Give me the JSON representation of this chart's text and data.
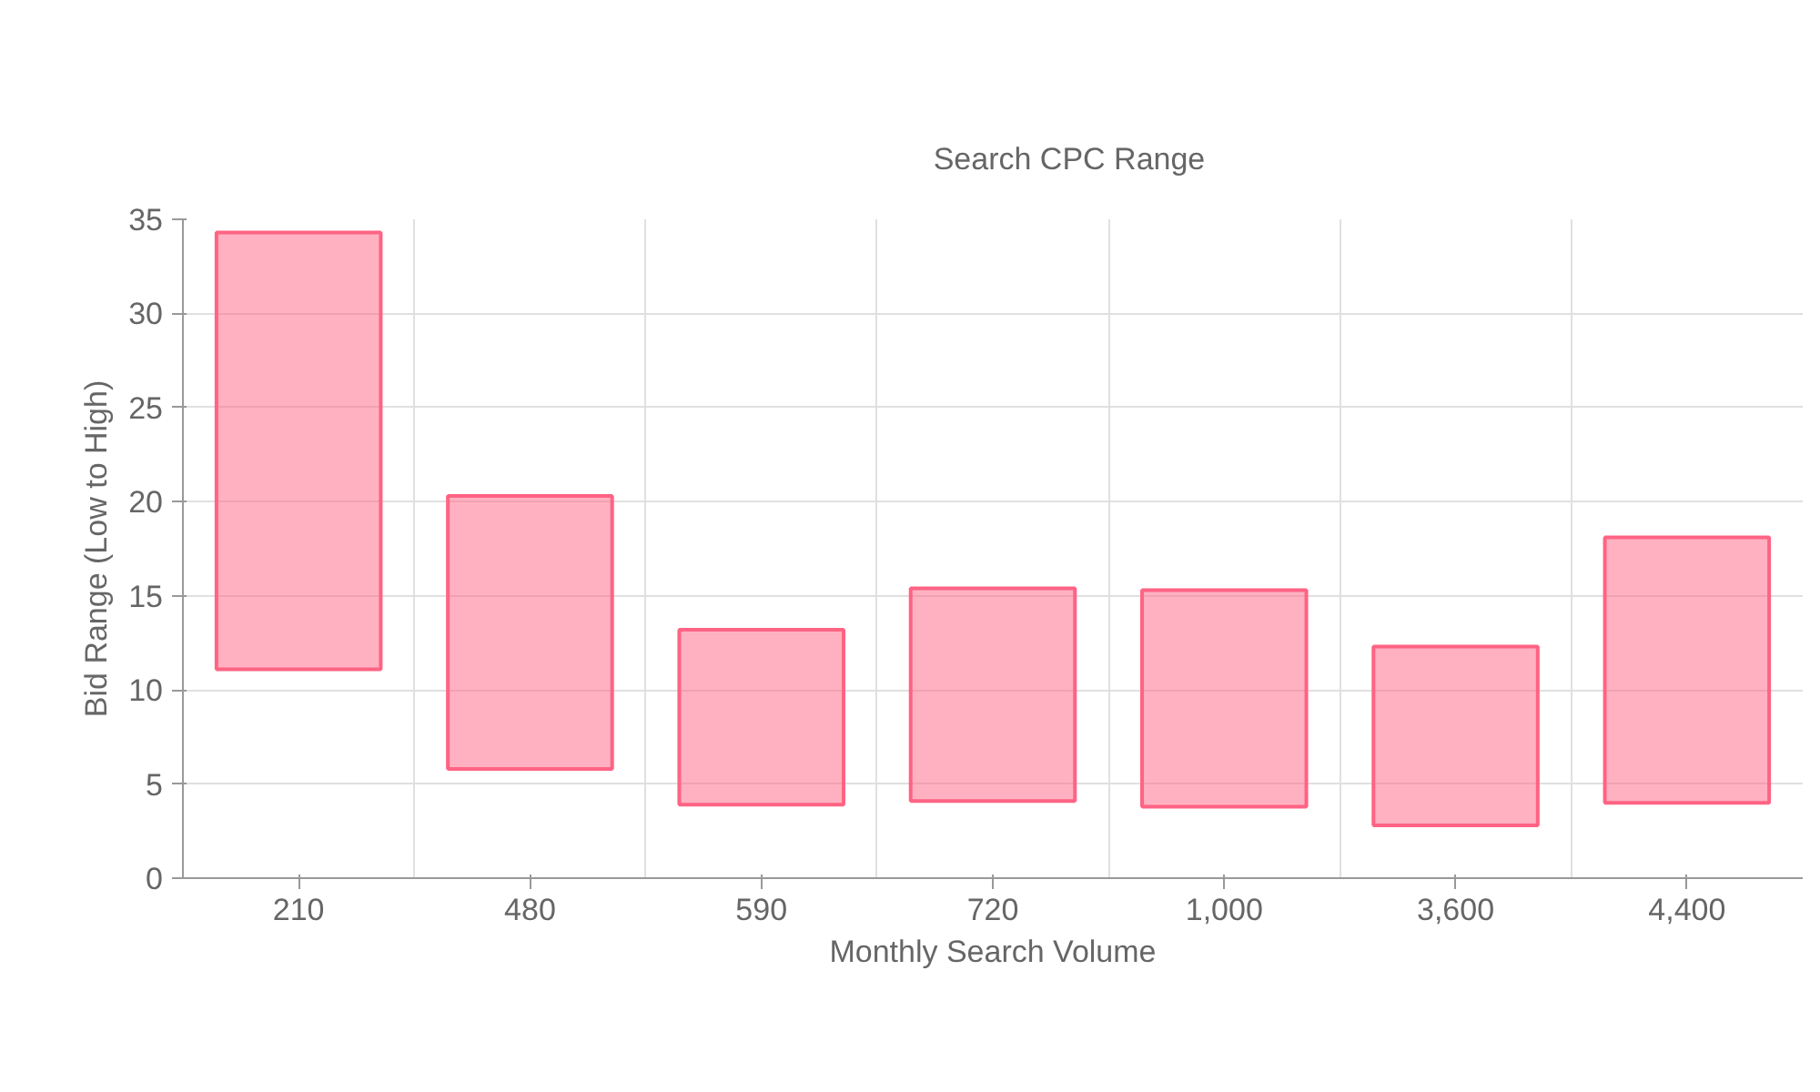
{
  "chart_data": {
    "type": "bar",
    "xlabel": "Monthly Search Volume",
    "ylabel": "Bid Range (Low to High)",
    "categories": [
      "210",
      "480",
      "590",
      "720",
      "1,000",
      "3,600",
      "4,400"
    ],
    "series": [
      {
        "name": "Search CPC Range",
        "color": "#ff6384",
        "base": [
          11.1,
          5.8,
          3.9,
          4.1,
          3.8,
          2.8,
          4.0
        ],
        "values": [
          23.2,
          14.5,
          9.3,
          11.3,
          11.5,
          9.5,
          14.1
        ]
      }
    ],
    "ylim": [
      0,
      35
    ],
    "yticks": [
      0,
      5,
      10,
      15,
      20,
      25,
      30,
      35
    ],
    "grid": true,
    "legend": "top"
  }
}
